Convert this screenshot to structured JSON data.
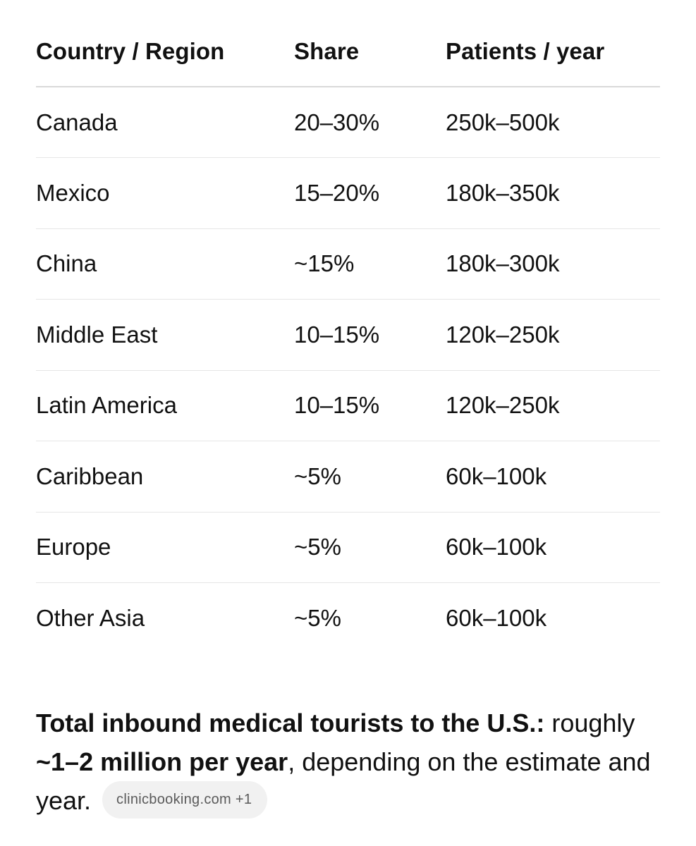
{
  "table": {
    "headers": [
      "Country / Region",
      "Share",
      "Patients / year"
    ],
    "rows": [
      [
        "Canada",
        "20–30%",
        "250k–500k"
      ],
      [
        "Mexico",
        "15–20%",
        "180k–350k"
      ],
      [
        "China",
        "~15%",
        "180k–300k"
      ],
      [
        "Middle East",
        "10–15%",
        "120k–250k"
      ],
      [
        "Latin America",
        "10–15%",
        "120k–250k"
      ],
      [
        "Caribbean",
        "~5%",
        "60k–100k"
      ],
      [
        "Europe",
        "~5%",
        "60k–100k"
      ],
      [
        "Other Asia",
        "~5%",
        "60k–100k"
      ]
    ]
  },
  "summary": {
    "bold_lead": "Total inbound medical tourists to the U.S.:",
    "text_before": " roughly ",
    "bold_figure": "~1–2 million per year",
    "text_after": ", depending on the estimate and year.",
    "source_chip": "clinicbooking.com +1"
  }
}
